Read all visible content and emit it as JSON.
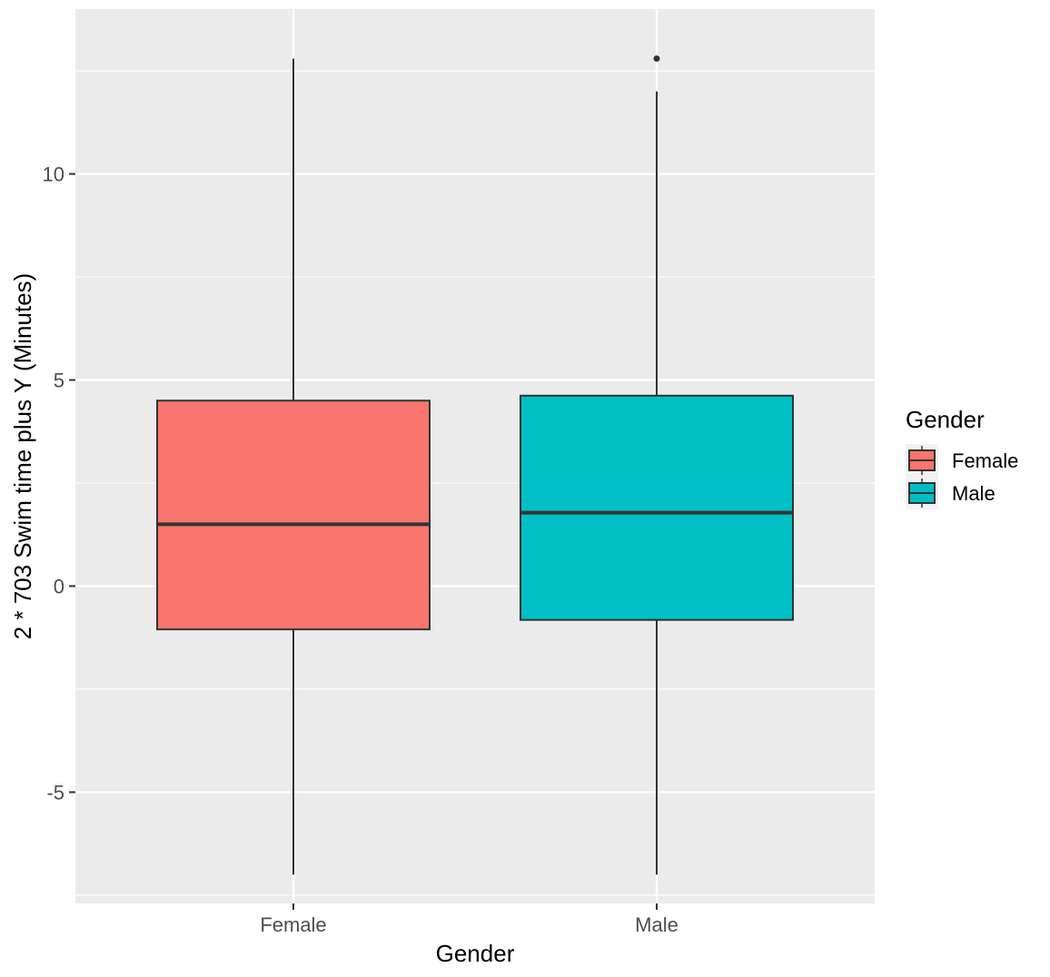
{
  "chart_data": {
    "type": "box",
    "xlabel": "Gender",
    "ylabel": "2 * 703 Swim time plus Y (Minutes)",
    "categories": [
      "Female",
      "Male"
    ],
    "ylim": [
      -7.7,
      14
    ],
    "y_ticks": [
      -5,
      0,
      5,
      10
    ],
    "y_tick_labels": [
      "-5",
      "0",
      "5",
      "10"
    ],
    "grid": true,
    "boxes": [
      {
        "name": "Female",
        "whisker_low": -7.0,
        "q1": -1.05,
        "median": 1.5,
        "q3": 4.5,
        "whisker_high": 12.8,
        "outliers": [],
        "color": "#F8766D"
      },
      {
        "name": "Male",
        "whisker_low": -7.0,
        "q1": -0.82,
        "median": 1.78,
        "q3": 4.62,
        "whisker_high": 12.0,
        "outliers": [
          12.8
        ],
        "color": "#00BFC4"
      }
    ],
    "legend": {
      "title": "Gender",
      "placement": "right",
      "entries": [
        {
          "label": "Female",
          "color": "#F8766D"
        },
        {
          "label": "Male",
          "color": "#00BFC4"
        }
      ]
    },
    "panel_color": "#EBEBEB",
    "grid_color": "#FFFFFF"
  }
}
